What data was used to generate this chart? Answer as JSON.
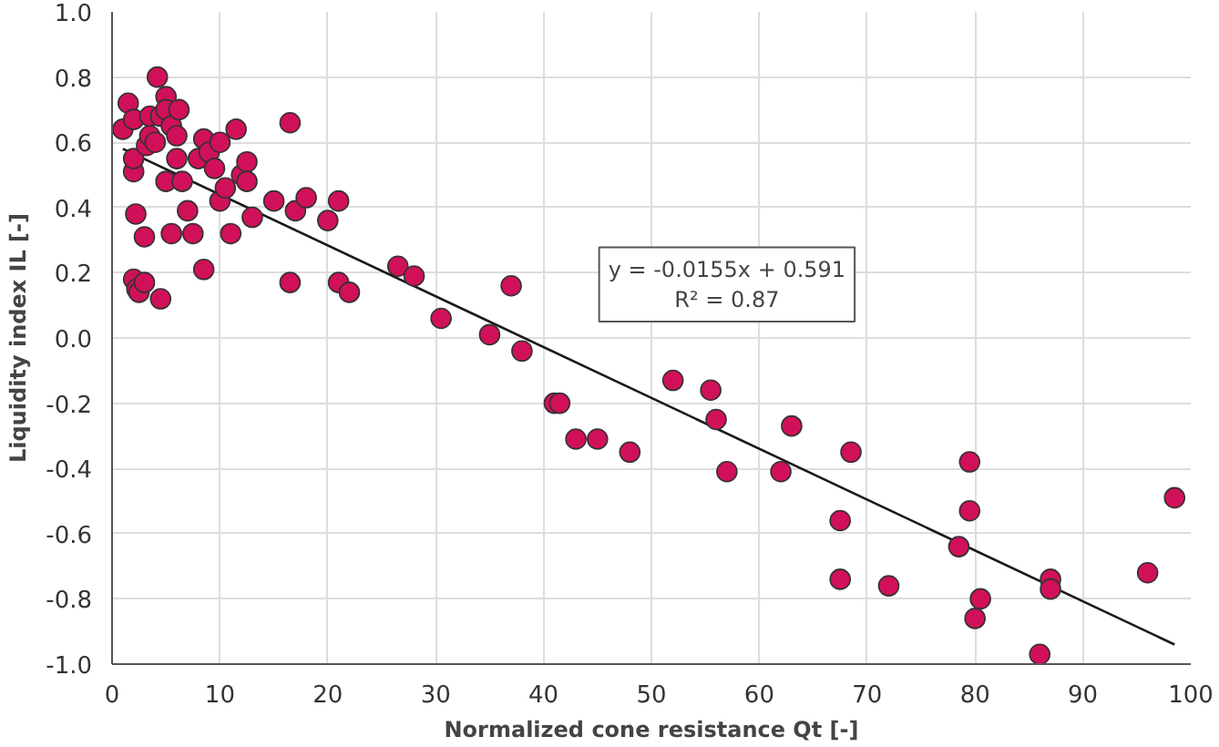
{
  "chart_data": {
    "type": "scatter",
    "xlabel": "Normalized cone resistance Qt [-]",
    "ylabel": "Liquidity index IL [-]",
    "xlim": [
      0,
      100
    ],
    "ylim": [
      -1.0,
      1.0
    ],
    "xticks": [
      0,
      10,
      20,
      30,
      40,
      50,
      60,
      70,
      80,
      90,
      100
    ],
    "yticks": [
      {
        "value": -1.0,
        "label": "-1.0"
      },
      {
        "value": -0.8,
        "label": "-0.8"
      },
      {
        "value": -0.6,
        "label": "-0.6"
      },
      {
        "value": -0.4,
        "label": "-0.4"
      },
      {
        "value": -0.2,
        "label": "-0.2"
      },
      {
        "value": 0.0,
        "label": "0.0"
      },
      {
        "value": 0.2,
        "label": "0.2"
      },
      {
        "value": 0.4,
        "label": "0.4"
      },
      {
        "value": 0.6,
        "label": "0.6"
      },
      {
        "value": 0.8,
        "label": "0.8"
      },
      {
        "value": 1.0,
        "label": "1.0"
      }
    ],
    "grid": true,
    "marker": "circle",
    "annotations": [
      "y = -0.0155x + 0.591",
      "R² = 0.87"
    ],
    "series": [
      {
        "color": "#d1105a",
        "x": [
          1.0,
          1.5,
          2,
          2,
          2,
          2.2,
          2,
          2.3,
          2.5,
          3,
          3,
          3.2,
          3.5,
          3.5,
          4,
          4.2,
          4.5,
          4.5,
          5,
          5,
          5,
          5.5,
          5.5,
          6,
          6,
          6.2,
          6.5,
          7,
          7.5,
          8,
          8.5,
          8.5,
          9,
          9.5,
          10,
          10,
          10.5,
          11,
          11.5,
          12,
          12.5,
          12.5,
          13,
          15,
          16.5,
          17,
          16.5,
          18,
          20,
          21,
          21,
          22,
          26.5,
          28,
          30.5,
          35,
          37,
          38,
          41,
          41.5,
          43,
          45,
          48,
          52,
          55.5,
          56,
          57,
          62,
          63,
          67.5,
          67.5,
          68.5,
          72,
          78.5,
          79.5,
          79.5,
          80,
          80.5,
          86,
          87,
          87,
          96,
          98.5
        ],
        "values": [
          0.64,
          0.72,
          0.67,
          0.51,
          0.55,
          0.38,
          0.18,
          0.15,
          0.14,
          0.17,
          0.31,
          0.59,
          0.68,
          0.62,
          0.6,
          0.8,
          0.68,
          0.12,
          0.74,
          0.7,
          0.48,
          0.32,
          0.65,
          0.62,
          0.55,
          0.7,
          0.48,
          0.39,
          0.32,
          0.55,
          0.21,
          0.61,
          0.57,
          0.52,
          0.42,
          0.6,
          0.46,
          0.32,
          0.64,
          0.5,
          0.54,
          0.48,
          0.37,
          0.42,
          0.66,
          0.39,
          0.17,
          0.43,
          0.36,
          0.42,
          0.17,
          0.14,
          0.22,
          0.19,
          0.06,
          0.01,
          0.16,
          -0.04,
          -0.2,
          -0.2,
          -0.31,
          -0.31,
          -0.35,
          -0.13,
          -0.16,
          -0.25,
          -0.41,
          -0.41,
          -0.27,
          -0.74,
          -0.56,
          -0.35,
          -0.76,
          -0.64,
          -0.38,
          -0.53,
          -0.86,
          -0.8,
          -0.97,
          -0.74,
          -0.77,
          -0.72,
          -0.49
        ]
      },
      {
        "type": "line",
        "marker": "none",
        "color": "#1a1a1a",
        "x": [
          1.0,
          98.5
        ],
        "values": [
          0.58,
          -0.94
        ]
      }
    ]
  }
}
